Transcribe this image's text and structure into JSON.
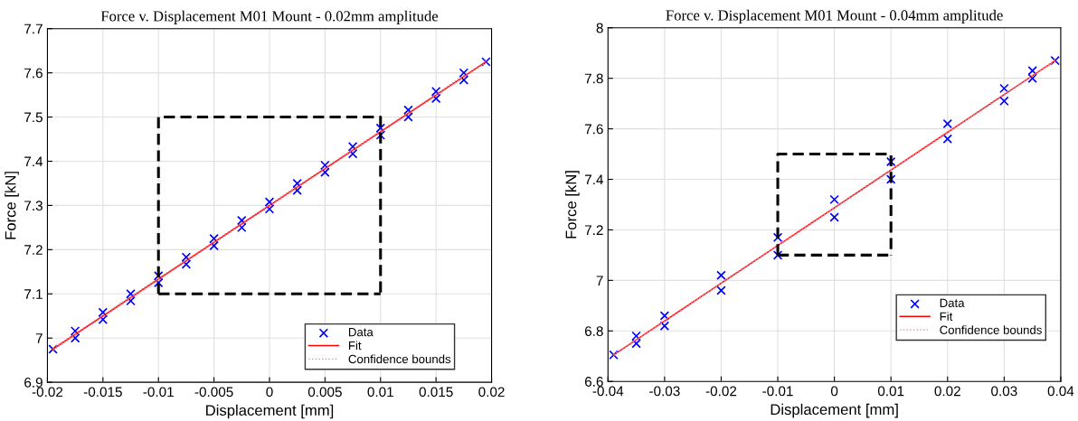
{
  "chart_data": [
    {
      "type": "scatter",
      "title": "Force v. Displacement M01 Mount - 0.02mm amplitude",
      "xlabel": "Displacement [mm]",
      "ylabel": "Force [kN]",
      "xlim": [
        -0.02,
        0.02
      ],
      "xticks": [
        -0.02,
        -0.015,
        -0.01,
        -0.005,
        0,
        0.005,
        0.01,
        0.015,
        0.02
      ],
      "ylim": [
        6.9,
        7.7
      ],
      "yticks": [
        6.9,
        7,
        7.1,
        7.2,
        7.3,
        7.4,
        7.5,
        7.6,
        7.7
      ],
      "grid": true,
      "legend": "bottom right",
      "series": [
        {
          "name": "Data",
          "marker": "cross",
          "color": "#0000ff",
          "x": [
            -0.0195,
            -0.0175,
            -0.015,
            -0.0125,
            -0.01,
            -0.0075,
            -0.005,
            -0.0025,
            0,
            0.0025,
            0.005,
            0.0075,
            0.01,
            0.0125,
            0.015,
            0.0175,
            0.0195,
            -0.0175,
            -0.015,
            -0.0125,
            -0.01,
            -0.0075,
            -0.005,
            -0.0025,
            0,
            0.0025,
            0.005,
            0.0075,
            0.01,
            0.0125,
            0.015,
            0.0175
          ],
          "values": [
            6.975,
            7.016,
            7.058,
            7.1,
            7.141,
            7.183,
            7.225,
            7.266,
            7.308,
            7.35,
            7.391,
            7.433,
            7.475,
            7.516,
            7.558,
            7.6,
            7.625,
            7.0,
            7.042,
            7.084,
            7.125,
            7.167,
            7.209,
            7.25,
            7.292,
            7.334,
            7.375,
            7.417,
            7.459,
            7.5,
            7.542,
            7.584
          ]
        },
        {
          "name": "Fit",
          "type": "line",
          "line_style": "solid",
          "color": "#ff0000",
          "x": [
            -0.0195,
            0.0195
          ],
          "values": [
            6.975,
            7.625
          ]
        },
        {
          "name": "Confidence bounds",
          "type": "line",
          "line_style": "dotted",
          "color": "#f08090",
          "x": [
            -0.0195,
            0.0195
          ],
          "values": [
            6.977,
            7.627
          ]
        },
        {
          "type": "line",
          "line_style": "dotted",
          "color": "#f08090",
          "x": [
            -0.0195,
            0.0195
          ],
          "values": [
            6.973,
            7.623
          ]
        },
        {
          "type": "line",
          "line_style": "dashed",
          "color": "#000000",
          "x": [
            -0.01,
            -0.01,
            0.01,
            0.01
          ],
          "values": [
            7.1,
            7.5,
            7.5,
            7.1
          ]
        },
        {
          "type": "line",
          "line_style": "dashed",
          "color": "#000000",
          "x": [
            -0.01,
            0.01
          ],
          "values": [
            7.1,
            7.1
          ]
        }
      ]
    },
    {
      "type": "scatter",
      "title": "Force v. Displacement M01 Mount - 0.04mm amplitude",
      "xlabel": "Displacement [mm]",
      "ylabel": "Force [kN]",
      "xlim": [
        -0.04,
        0.04
      ],
      "xticks": [
        -0.04,
        -0.03,
        -0.02,
        -0.01,
        0,
        0.01,
        0.02,
        0.03,
        0.04
      ],
      "ylim": [
        6.6,
        8
      ],
      "yticks": [
        6.6,
        6.8,
        7,
        7.2,
        7.4,
        7.6,
        7.8,
        8
      ],
      "grid": true,
      "legend": "bottom right",
      "series": [
        {
          "name": "Data",
          "marker": "cross",
          "color": "#0000ff",
          "x": [
            -0.039,
            -0.035,
            -0.03,
            -0.02,
            -0.01,
            0,
            0.01,
            0.02,
            0.03,
            0.035,
            0.039,
            -0.035,
            -0.03,
            -0.02,
            -0.01,
            0,
            0.01,
            0.02,
            0.03,
            0.035
          ],
          "values": [
            6.705,
            6.78,
            6.86,
            7.02,
            7.17,
            7.32,
            7.47,
            7.62,
            7.76,
            7.83,
            7.87,
            6.75,
            6.82,
            6.96,
            7.1,
            7.25,
            7.4,
            7.56,
            7.71,
            7.8
          ]
        },
        {
          "name": "Fit",
          "type": "line",
          "line_style": "solid",
          "color": "#ff0000",
          "x": [
            -0.039,
            0.039
          ],
          "values": [
            6.705,
            7.87
          ]
        },
        {
          "name": "Confidence bounds",
          "type": "line",
          "line_style": "dotted",
          "color": "#f08090",
          "x": [
            -0.039,
            0.039
          ],
          "values": [
            6.707,
            7.872
          ]
        },
        {
          "type": "line",
          "line_style": "dotted",
          "color": "#f08090",
          "x": [
            -0.039,
            0.039
          ],
          "values": [
            6.703,
            7.868
          ]
        },
        {
          "type": "line",
          "line_style": "dashed",
          "color": "#000000",
          "x": [
            -0.01,
            -0.01,
            0.01,
            0.01
          ],
          "values": [
            7.1,
            7.5,
            7.5,
            7.1
          ]
        },
        {
          "type": "line",
          "line_style": "dashed",
          "color": "#000000",
          "x": [
            -0.01,
            0.01
          ],
          "values": [
            7.1,
            7.1
          ]
        }
      ]
    }
  ]
}
